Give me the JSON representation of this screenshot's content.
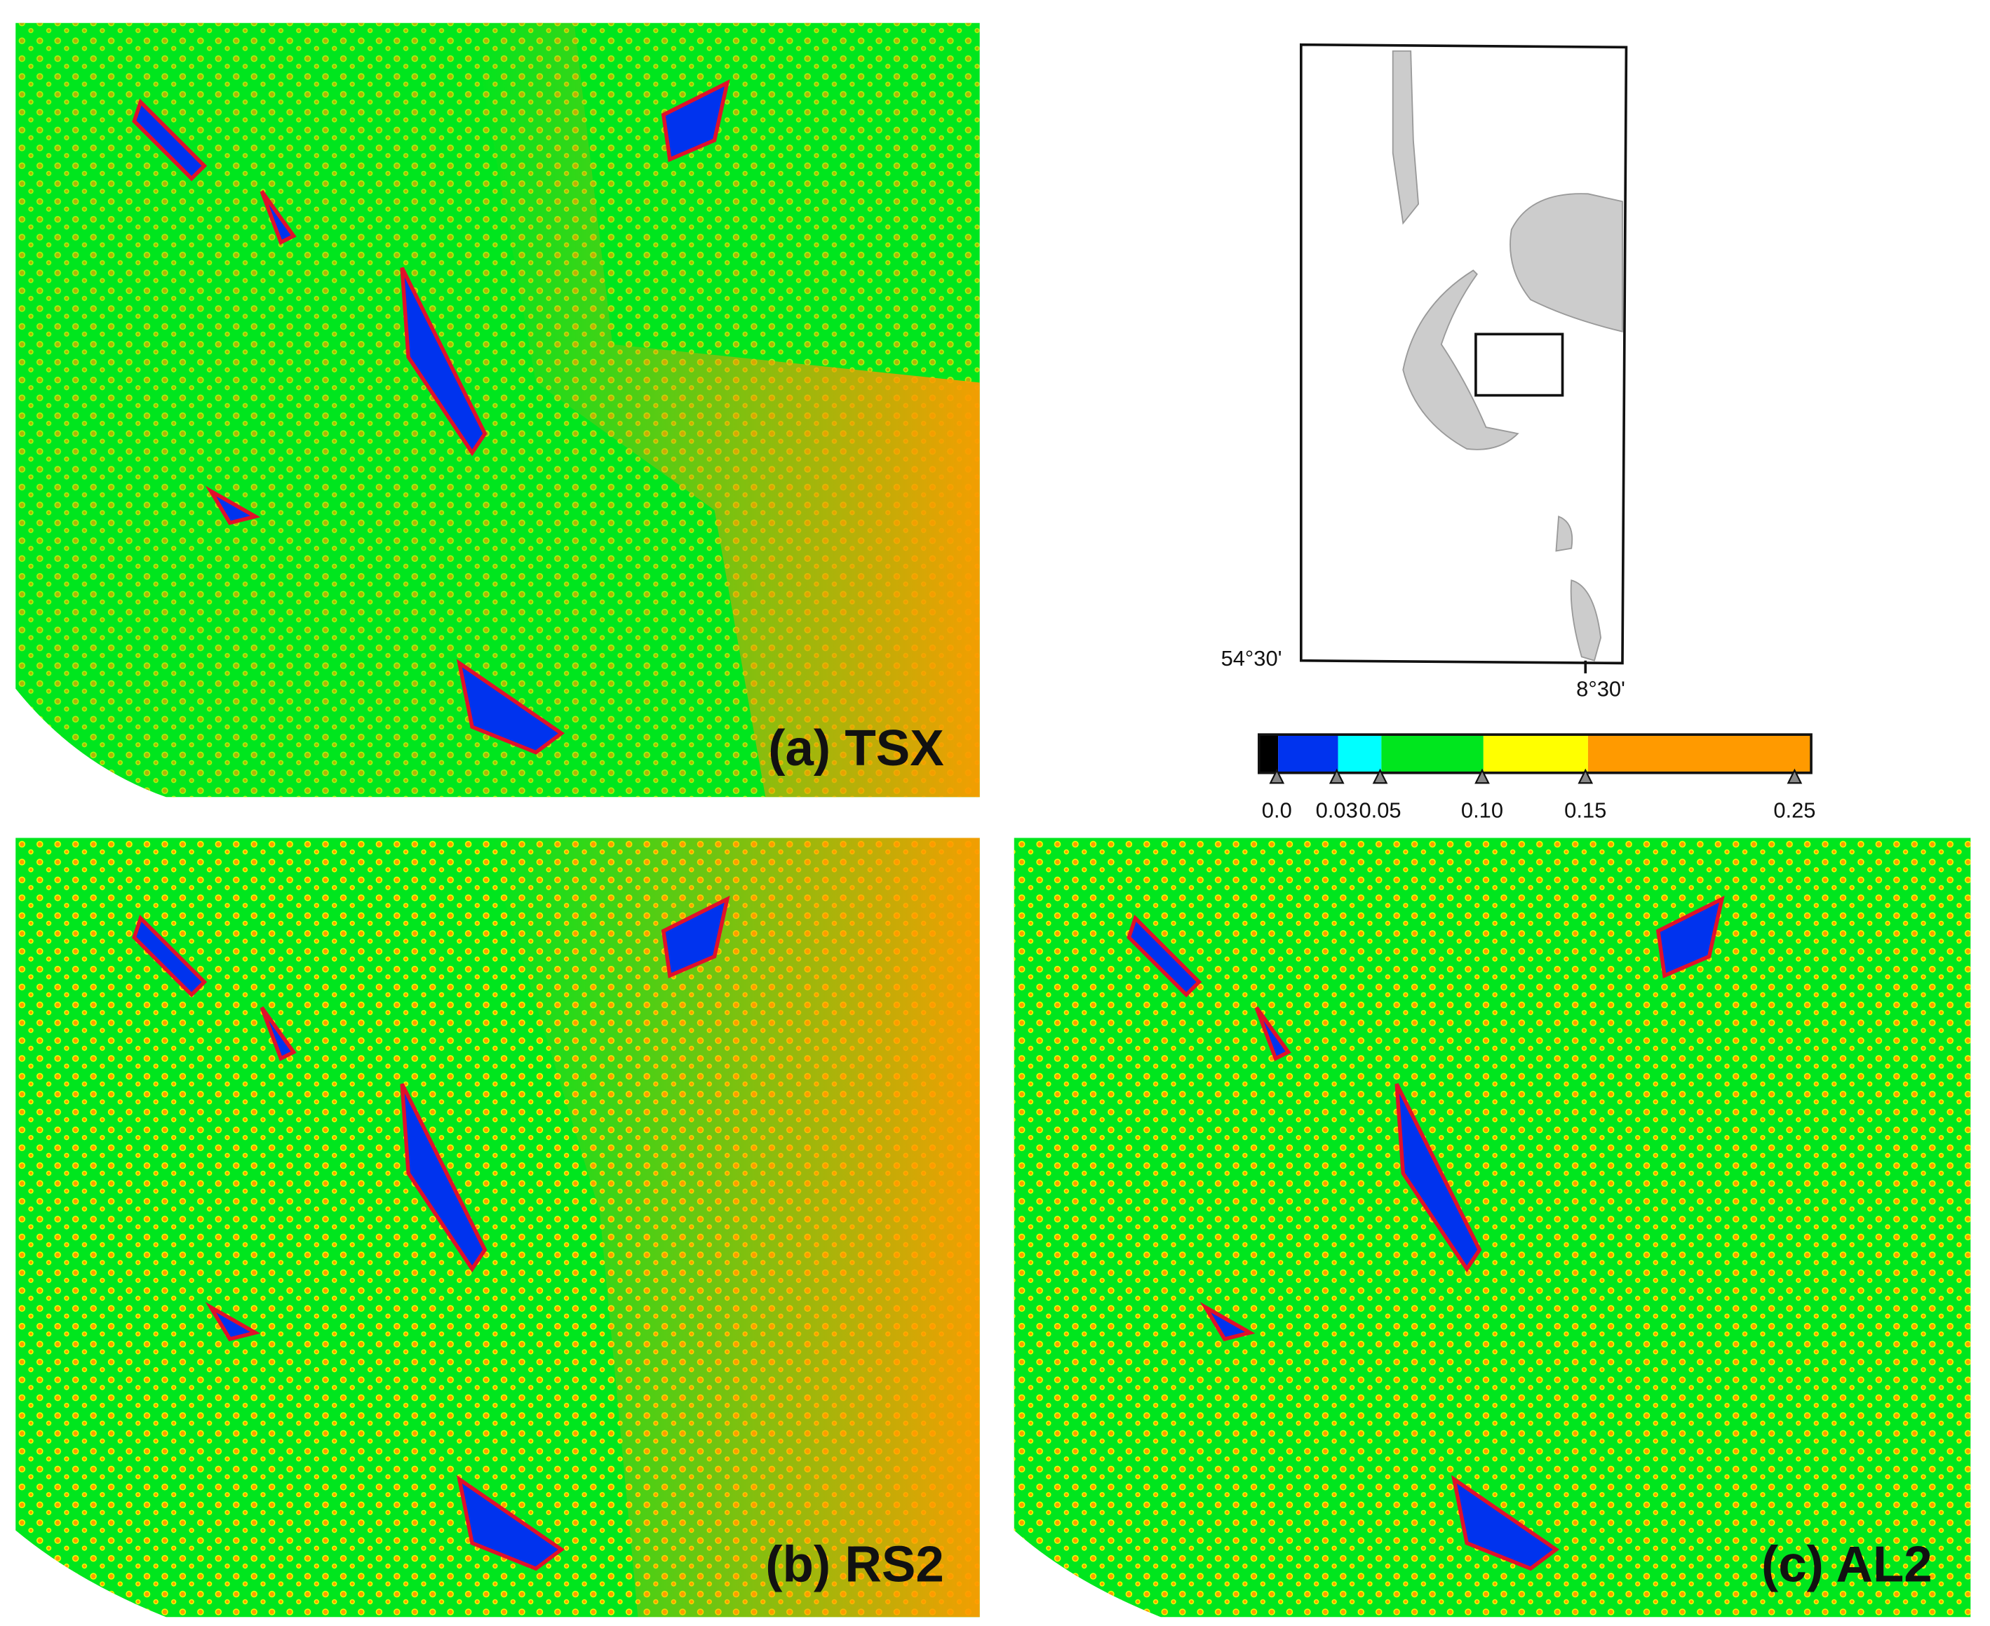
{
  "panels": [
    {
      "label": "(a) TSX"
    },
    {
      "label": "(b) RS2"
    },
    {
      "label": "(c) AL2"
    }
  ],
  "locator": {
    "lat_label": "54°30'",
    "lon_label": "8°30'"
  },
  "colorbar": {
    "colors": [
      "#000000",
      "#0033ee",
      "#00ffff",
      "#00e61e",
      "#ffff00",
      "#ff9a00"
    ],
    "ticks": [
      {
        "value": 0,
        "label": "0.0"
      },
      0.03,
      0.05,
      {
        "value": 0.1,
        "label": "0.10"
      },
      0.15,
      0.25
    ]
  }
}
